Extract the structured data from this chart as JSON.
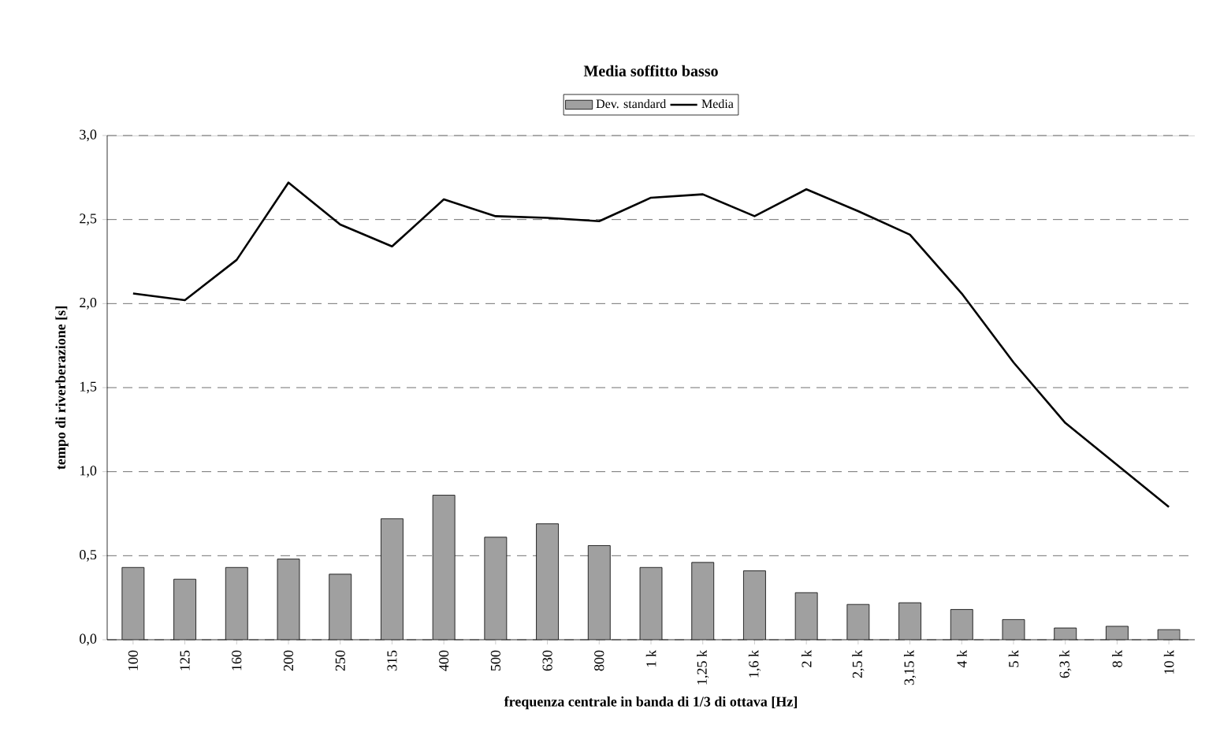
{
  "chart_data": {
    "type": "bar",
    "title": "Media soffitto basso",
    "xlabel": "frequenza centrale in banda di 1/3 di ottava [Hz]",
    "ylabel": "tempo di riverberazione [s]",
    "categories": [
      "100",
      "125",
      "160",
      "200",
      "250",
      "315",
      "400",
      "500",
      "630",
      "800",
      "1 k",
      "1,25 k",
      "1,6 k",
      "2 k",
      "2,5 k",
      "3,15 k",
      "4 k",
      "5 k",
      "6,3 k",
      "8 k",
      "10 k"
    ],
    "series": [
      {
        "name": "Dev. standard",
        "color": "#a0a0a0",
        "values": [
          0.43,
          0.36,
          0.43,
          0.48,
          0.39,
          0.72,
          0.86,
          0.61,
          0.69,
          0.56,
          0.43,
          0.46,
          0.41,
          0.28,
          0.21,
          0.22,
          0.18,
          0.12,
          0.07,
          0.08,
          0.06
        ]
      },
      {
        "name": "Media",
        "type": "line",
        "color": "#000000",
        "values": [
          2.06,
          2.02,
          2.26,
          2.72,
          2.47,
          2.34,
          2.62,
          2.52,
          2.51,
          2.49,
          2.63,
          2.65,
          2.52,
          2.68,
          2.55,
          2.41,
          2.06,
          1.65,
          1.29,
          1.04,
          0.79
        ]
      }
    ],
    "ylim": [
      0,
      3
    ],
    "yticks": [
      {
        "value": 0,
        "label": "0,0"
      },
      {
        "value": 0.5,
        "label": "0,5"
      },
      {
        "value": 1,
        "label": "1,0"
      },
      {
        "value": 1.5,
        "label": "1,5"
      },
      {
        "value": 2,
        "label": "2,0"
      },
      {
        "value": 2.5,
        "label": "2,5"
      },
      {
        "value": 3,
        "label": "3,0"
      }
    ],
    "grid": "y",
    "legend": "top",
    "marker": "none",
    "line_style": "solid"
  }
}
